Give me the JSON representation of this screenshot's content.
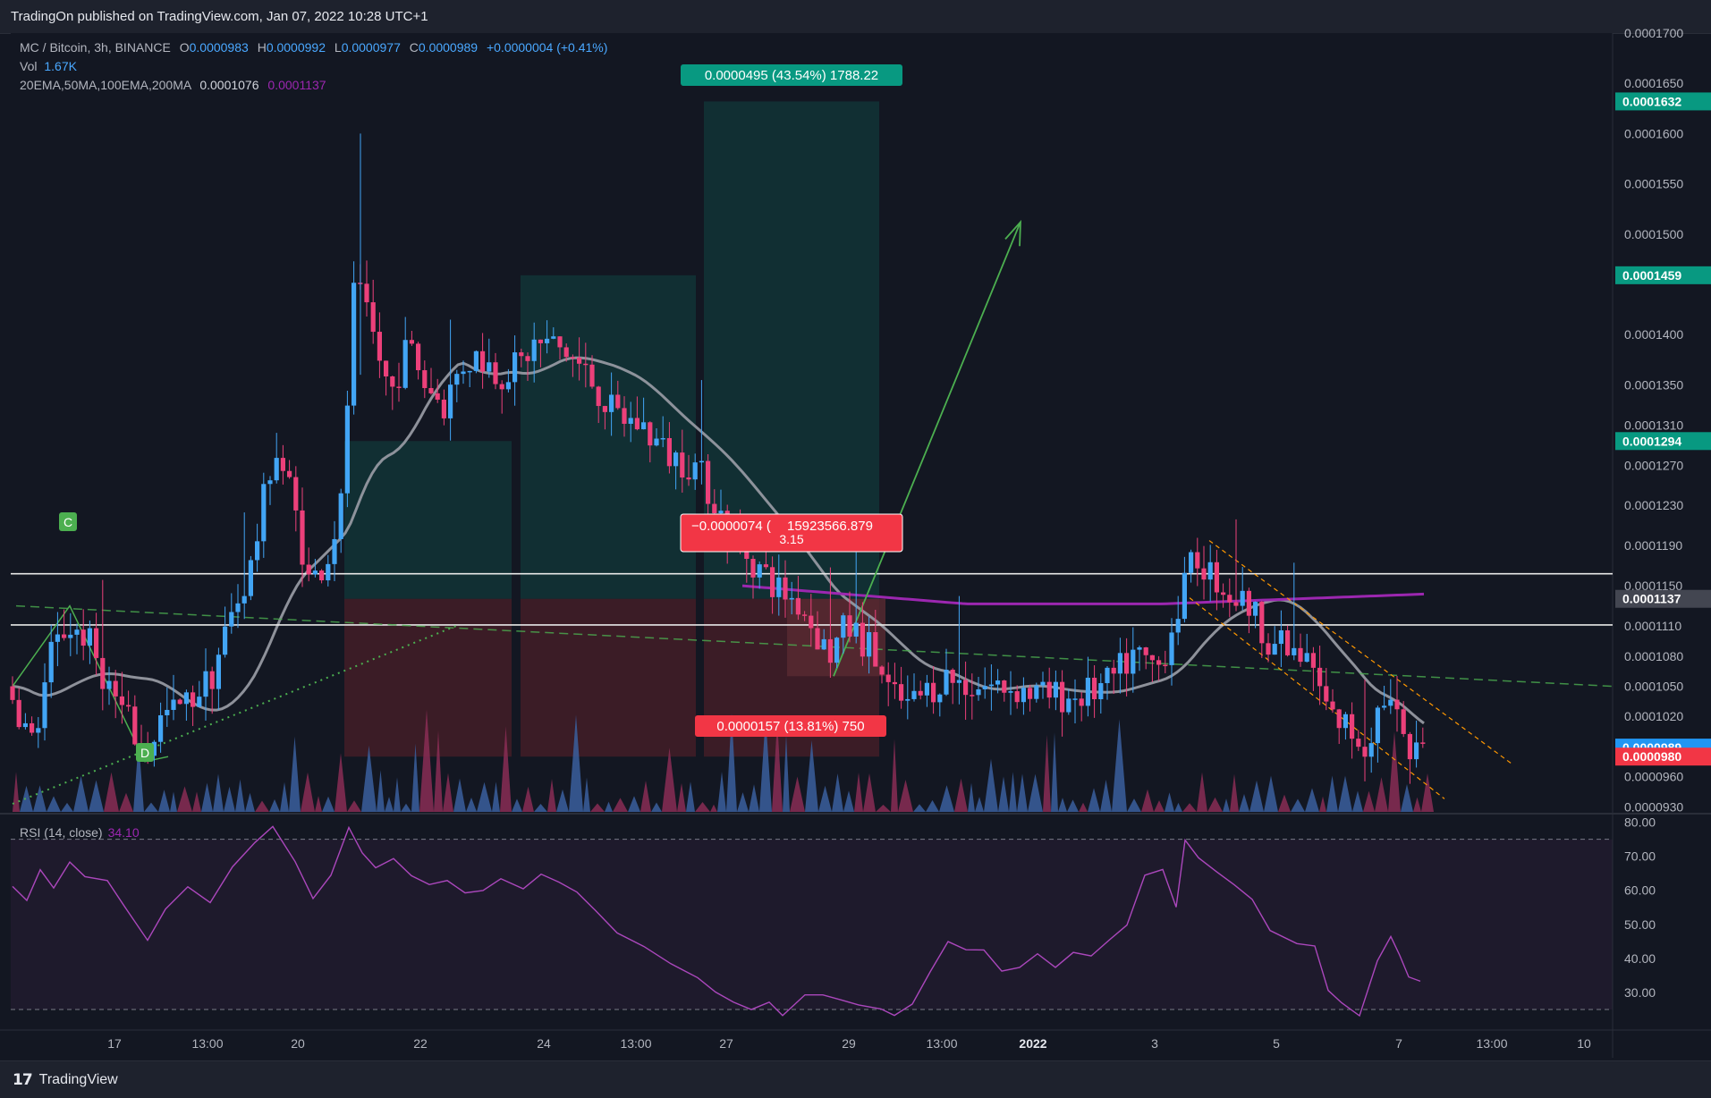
{
  "header": {
    "published": "TradingOn published on TradingView.com, Jan 07, 2022 10:28 UTC+1"
  },
  "legend": {
    "symbol": "MC / Bitcoin, 3h, BINANCE",
    "o_label": "O",
    "o_value": "0.0000983",
    "h_label": "H",
    "h_value": "0.0000992",
    "l_label": "L",
    "l_value": "0.0000977",
    "c_label": "C",
    "c_value": "0.0000989",
    "change": "+0.0000004 (+0.41%)",
    "vol_label": "Vol",
    "vol_value": "1.67K",
    "ma_label": "20EMA,50MA,100EMA,200MA",
    "ma_value1": "0.0001076",
    "ma_value2": "0.0001137"
  },
  "rsi_legend": {
    "label": "RSI (14, close)",
    "value": "34.10"
  },
  "footer": {
    "brand": "TradingView",
    "logo_mark": "17"
  },
  "colors": {
    "background": "#131722",
    "up": "#26a69a",
    "up_candle": "#42a5f5",
    "down": "#ef5350",
    "down_candle": "#ec407a",
    "ma_gray": "#9598a1",
    "ma_purple": "#9c27b0",
    "rsi_line": "#ab47bc",
    "trend_green": "#4caf50",
    "channel_orange": "#ff9800",
    "profit_zone": "#0d3b3b",
    "loss_zone": "#5a1f26"
  },
  "chart_data": {
    "type": "candlestick",
    "symbol": "MC / Bitcoin",
    "timeframe": "3h",
    "exchange": "BINANCE",
    "x_tick_labels": [
      "17",
      "13:00",
      "20",
      "22",
      "24",
      "13:00",
      "27",
      "29",
      "13:00",
      "2022",
      "3",
      "5",
      "7",
      "13:00",
      "10"
    ],
    "y_axis_labels": [
      "0.0001700",
      "0.0001650",
      "0.0001600",
      "0.0001550",
      "0.0001500",
      "0.0001400",
      "0.0001350",
      "0.0001310",
      "0.0001270",
      "0.0001230",
      "0.0001190",
      "0.0001150",
      "0.0001110",
      "0.0001080",
      "0.0001050",
      "0.0001020",
      "0.0000960",
      "0.0000930"
    ],
    "y_range": [
      9.25e-05,
      0.00017
    ],
    "price_tags": [
      {
        "value": "0.0001632",
        "color": "#089981"
      },
      {
        "value": "0.0001459",
        "color": "#089981"
      },
      {
        "value": "0.0001294",
        "color": "#089981"
      },
      {
        "value": "0.0001137",
        "color": "#434651"
      },
      {
        "value": "0.0000989",
        "color": "#2196f3"
      },
      {
        "value": "0.0000980",
        "color": "#f23645"
      }
    ],
    "horizontal_levels": [
      0.0001162,
      0.0001111
    ],
    "annotations": {
      "position_top": "0.0000495 (43.54%) 1788.22",
      "position_mid_a": "−0.0000074 (",
      "position_mid_b": "15923566.879",
      "position_mid_c": "3.15",
      "position_bottom": "0.0000157 (13.81%) 750",
      "wave_c": "C",
      "wave_d": "D"
    },
    "rsi": {
      "label": "RSI (14, close)",
      "last": 34.1,
      "y_axis_labels": [
        "80.00",
        "70.00",
        "60.00",
        "50.00",
        "40.00",
        "30.00"
      ],
      "bands": [
        75,
        25
      ],
      "range": [
        20,
        82
      ]
    },
    "ma_purple_last": 0.0001137,
    "ma_gray_last": 0.0001076
  }
}
